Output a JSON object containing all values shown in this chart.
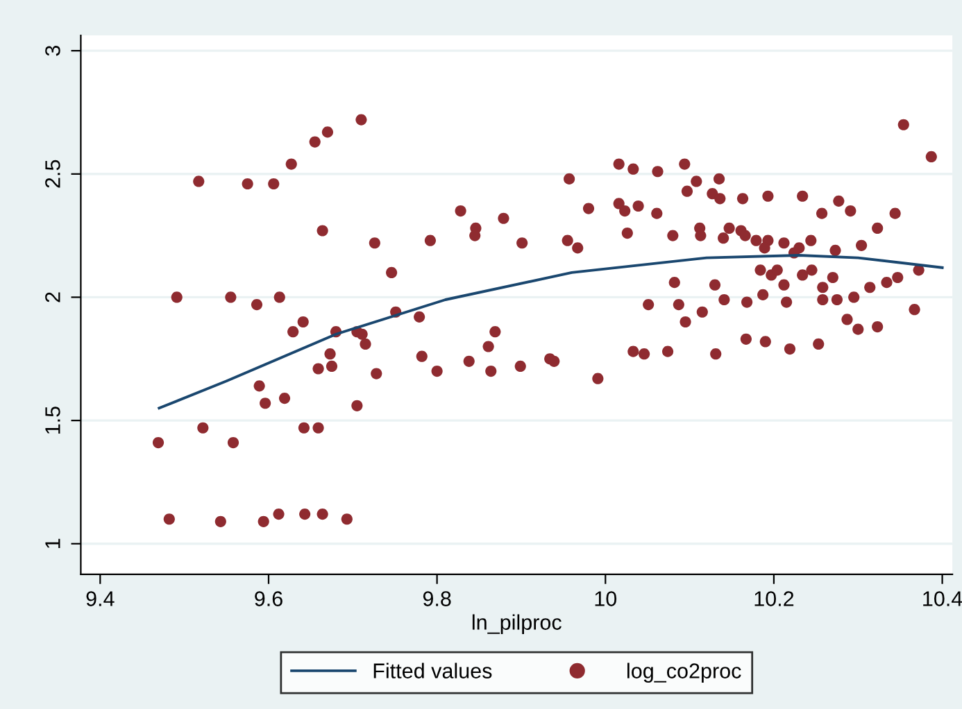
{
  "chart_data": {
    "type": "scatter",
    "xlabel": "ln_pilproc",
    "xlim": [
      9.377,
      10.412
    ],
    "ylim": [
      0.876,
      3.062
    ],
    "xticks": [
      9.4,
      9.6,
      9.8,
      10,
      10.2,
      10.4
    ],
    "yticks": [
      1,
      1.5,
      2,
      2.5,
      3
    ],
    "grid": "y",
    "legend": "bottom",
    "series": [
      {
        "name": "Fitted values",
        "type": "line",
        "color": "#1a476f",
        "marker": "none",
        "line_style": "solid",
        "x": [
          9.47,
          9.55,
          9.68,
          9.81,
          9.96,
          10.12,
          10.23,
          10.3,
          10.4
        ],
        "values": [
          1.55,
          1.66,
          1.85,
          1.99,
          2.1,
          2.16,
          2.17,
          2.16,
          2.12
        ]
      },
      {
        "name": "log_co2proc",
        "color": "#8f2b30",
        "marker": "circle",
        "x": [
          9.469,
          9.482,
          9.491,
          9.517,
          9.522,
          9.543,
          9.555,
          9.558,
          9.575,
          9.586,
          9.589,
          9.594,
          9.596,
          9.613,
          9.606,
          9.612,
          9.619,
          9.627,
          9.629,
          9.641,
          9.642,
          9.643,
          9.655,
          9.659,
          9.659,
          9.664,
          9.664,
          9.67,
          9.673,
          9.675,
          9.68,
          9.693,
          9.705,
          9.705,
          9.71,
          9.711,
          9.715,
          9.726,
          9.728,
          9.746,
          9.751,
          9.779,
          9.782,
          9.792,
          9.957,
          9.828,
          9.846,
          9.845,
          9.879,
          9.901,
          9.955,
          9.967,
          9.98,
          10.016,
          10.033,
          10.062,
          10.094,
          10.108,
          10.097,
          10.016,
          10.023,
          10.039,
          10.061,
          10.026,
          10.08,
          10.112,
          10.113,
          10.082,
          10.051,
          10.087,
          10.115,
          10.095,
          9.869,
          9.861,
          9.8,
          9.838,
          9.864,
          9.899,
          9.934,
          9.939,
          9.991,
          10.033,
          10.046,
          10.074,
          10.354,
          10.387,
          10.135,
          10.127,
          10.136,
          10.163,
          10.193,
          10.234,
          10.277,
          10.257,
          10.291,
          10.344,
          10.323,
          10.147,
          10.14,
          10.161,
          10.166,
          10.179,
          10.193,
          10.189,
          10.212,
          10.23,
          10.244,
          10.224,
          10.273,
          10.304,
          10.184,
          10.197,
          10.204,
          10.234,
          10.245,
          10.212,
          10.258,
          10.27,
          10.372,
          10.13,
          10.141,
          10.168,
          10.187,
          10.215,
          10.258,
          10.275,
          10.295,
          10.314,
          10.334,
          10.347,
          10.367,
          10.287,
          10.3,
          10.323,
          10.167,
          10.19,
          10.219,
          10.253,
          10.131
        ],
        "values": [
          1.41,
          1.1,
          2.0,
          2.47,
          1.47,
          1.09,
          2.0,
          1.41,
          2.46,
          1.97,
          1.64,
          1.09,
          1.57,
          2.0,
          2.46,
          1.12,
          1.59,
          2.54,
          1.86,
          1.9,
          1.47,
          1.12,
          2.63,
          1.71,
          1.47,
          1.12,
          2.27,
          2.67,
          1.77,
          1.72,
          1.86,
          1.1,
          1.86,
          1.56,
          2.72,
          1.85,
          1.81,
          2.22,
          1.69,
          2.1,
          1.94,
          1.92,
          1.76,
          2.23,
          2.48,
          2.35,
          2.28,
          2.25,
          2.32,
          2.22,
          2.23,
          2.2,
          2.36,
          2.54,
          2.52,
          2.51,
          2.54,
          2.47,
          2.43,
          2.38,
          2.35,
          2.37,
          2.34,
          2.26,
          2.25,
          2.28,
          2.25,
          2.06,
          1.97,
          1.97,
          1.94,
          1.9,
          1.86,
          1.8,
          1.7,
          1.74,
          1.7,
          1.72,
          1.75,
          1.74,
          1.67,
          1.78,
          1.77,
          1.78,
          2.7,
          2.57,
          2.48,
          2.42,
          2.4,
          2.4,
          2.41,
          2.41,
          2.39,
          2.34,
          2.35,
          2.34,
          2.28,
          2.28,
          2.24,
          2.27,
          2.25,
          2.23,
          2.23,
          2.2,
          2.22,
          2.2,
          2.23,
          2.18,
          2.19,
          2.21,
          2.11,
          2.09,
          2.11,
          2.09,
          2.11,
          2.05,
          2.04,
          2.08,
          2.11,
          2.05,
          1.99,
          1.98,
          2.01,
          1.98,
          1.99,
          1.99,
          2.0,
          2.04,
          2.06,
          2.08,
          1.95,
          1.91,
          1.87,
          1.88,
          1.83,
          1.82,
          1.79,
          1.81,
          1.77
        ]
      }
    ]
  }
}
